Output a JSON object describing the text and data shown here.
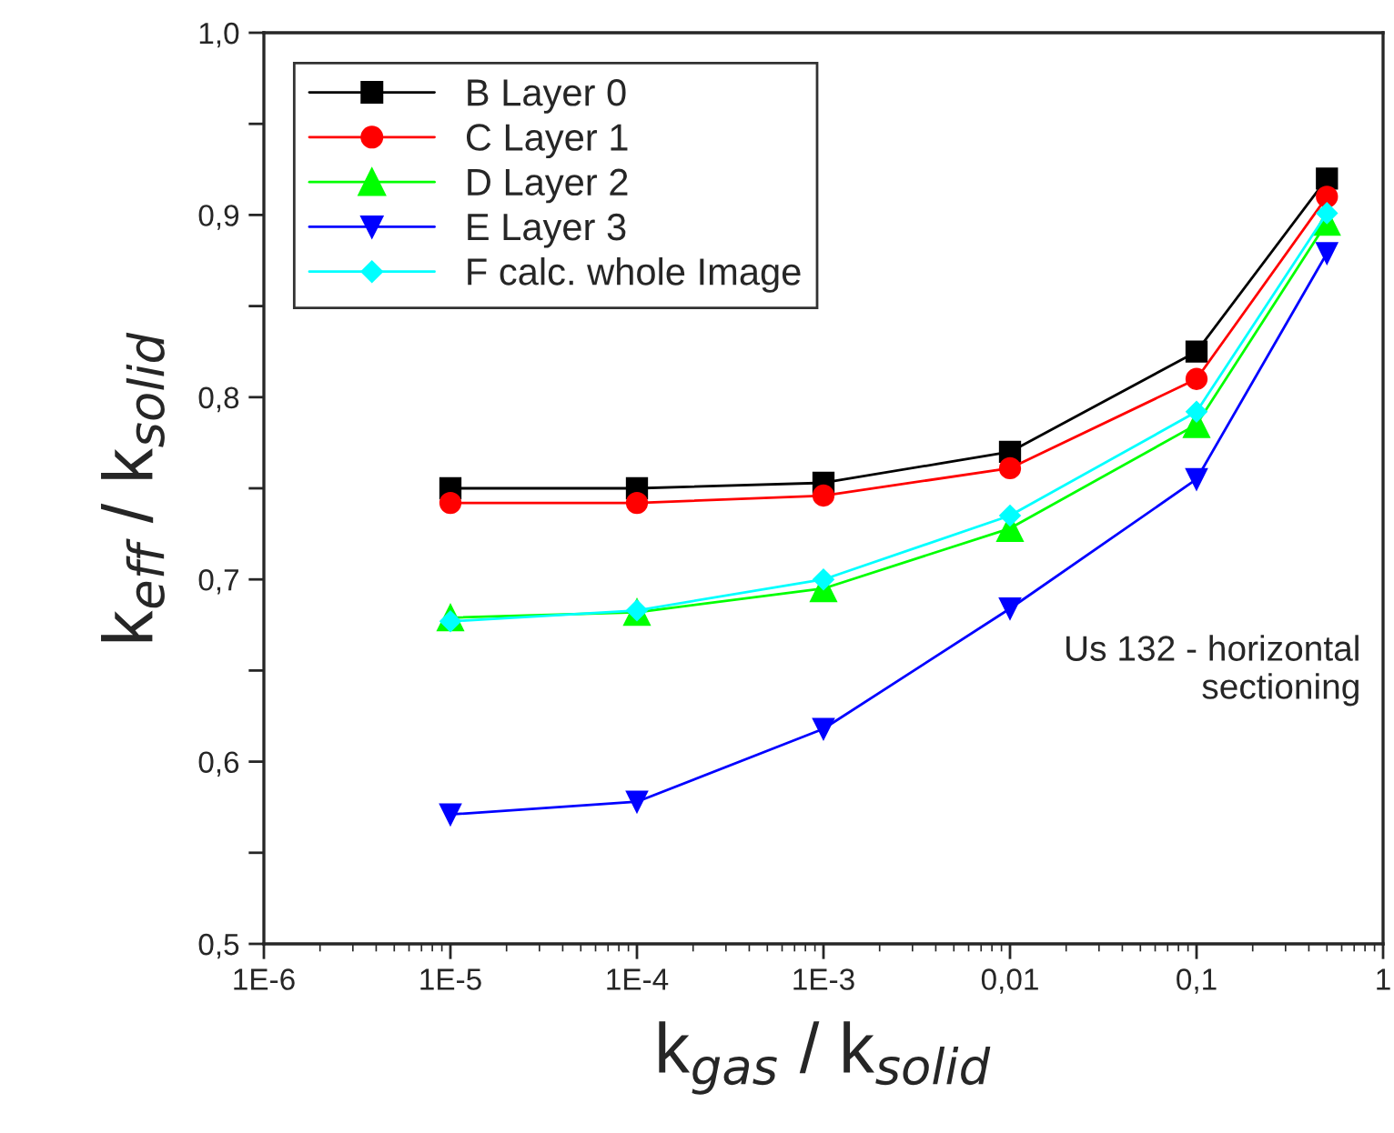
{
  "chart_data": {
    "type": "line",
    "xlabel": "k$_{gas}$ / k$_{solid}$",
    "ylabel": "k$_{eff}$ / k$_{solid}$",
    "x": [
      1e-05,
      0.0001,
      0.001,
      0.01,
      0.1,
      0.5
    ],
    "series": [
      {
        "name": "B Layer 0",
        "color": "#000000",
        "marker": "square",
        "values": [
          0.75,
          0.75,
          0.753,
          0.77,
          0.825,
          0.92
        ]
      },
      {
        "name": "C Layer 1",
        "color": "#ff0000",
        "marker": "circle",
        "values": [
          0.742,
          0.742,
          0.746,
          0.761,
          0.81,
          0.91
        ]
      },
      {
        "name": "D Layer 2",
        "color": "#00ff00",
        "marker": "triangle",
        "values": [
          0.679,
          0.682,
          0.695,
          0.728,
          0.785,
          0.896
        ]
      },
      {
        "name": "E Layer 3",
        "color": "#0000ff",
        "marker": "triangle_down",
        "values": [
          0.571,
          0.578,
          0.618,
          0.684,
          0.755,
          0.879
        ]
      },
      {
        "name": "F calc. whole Image",
        "color": "#00ffff",
        "marker": "diamond",
        "values": [
          0.677,
          0.683,
          0.7,
          0.735,
          0.792,
          0.901
        ]
      }
    ],
    "log": "x",
    "xlim": [
      1e-06,
      1
    ],
    "xticks": [
      {
        "value": 1e-06,
        "label": "1E-6"
      },
      {
        "value": 1e-05,
        "label": "1E-5"
      },
      {
        "value": 0.0001,
        "label": "1E-4"
      },
      {
        "value": 0.001,
        "label": "1E-3"
      },
      {
        "value": 0.01,
        "label": "0,01"
      },
      {
        "value": 0.1,
        "label": "0,1"
      },
      {
        "value": 1,
        "label": "1"
      }
    ],
    "ylim": [
      0.5,
      1.0
    ],
    "yticks": [
      {
        "value": 0.5,
        "label": "0,5"
      },
      {
        "value": 0.55,
        "label": null
      },
      {
        "value": 0.6,
        "label": "0,6"
      },
      {
        "value": 0.65,
        "label": null
      },
      {
        "value": 0.7,
        "label": "0,7"
      },
      {
        "value": 0.75,
        "label": null
      },
      {
        "value": 0.8,
        "label": "0,8"
      },
      {
        "value": 0.85,
        "label": null
      },
      {
        "value": 0.9,
        "label": "0,9"
      },
      {
        "value": 0.95,
        "label": null
      },
      {
        "value": 1.0,
        "label": "1,0"
      }
    ],
    "annotations": [
      "Us 132 - horizontal\nsectioning"
    ],
    "legend": "top left",
    "grid": false,
    "line_style": "solid"
  }
}
